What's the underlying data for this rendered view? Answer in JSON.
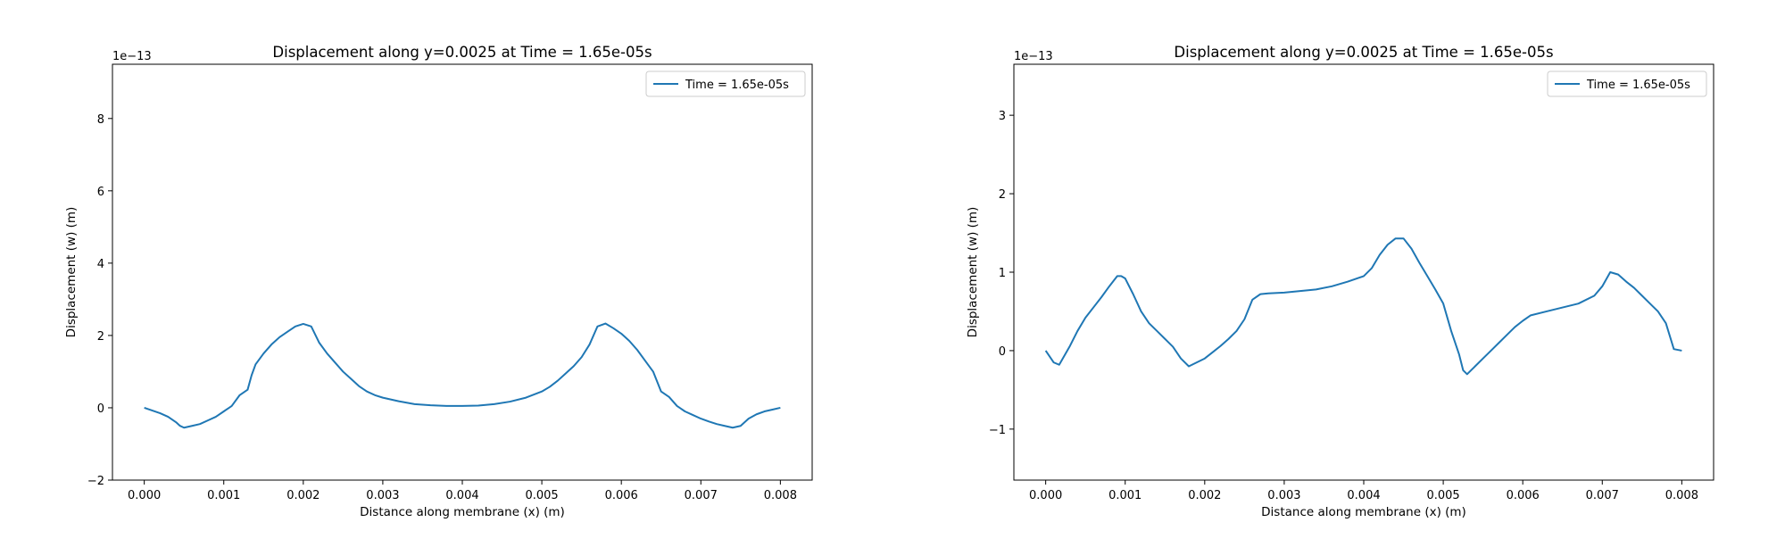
{
  "chart_data": [
    {
      "type": "line",
      "title": "Displacement along y=0.0025 at Time = 1.65e-05s",
      "xlabel": "Distance along membrane (x) (m)",
      "ylabel": "Displacement (w) (m)",
      "offset_text": "1e−13",
      "xlim": [
        -0.0004,
        0.0084
      ],
      "ylim": [
        -2.0,
        9.5
      ],
      "xticks": [
        0.0,
        0.001,
        0.002,
        0.003,
        0.004,
        0.005,
        0.006,
        0.007,
        0.008
      ],
      "xtick_labels": [
        "0.000",
        "0.001",
        "0.002",
        "0.003",
        "0.004",
        "0.005",
        "0.006",
        "0.007",
        "0.008"
      ],
      "yticks": [
        -2,
        0,
        2,
        4,
        6,
        8
      ],
      "ytick_labels": [
        "−2",
        "0",
        "2",
        "4",
        "6",
        "8"
      ],
      "grid": false,
      "legend_position": "upper-right",
      "series": [
        {
          "name": "Time = 1.65e-05s",
          "color": "#1f77b4",
          "x": [
            0.0,
            0.0002,
            0.0003,
            0.0004,
            0.00045,
            0.0005,
            0.0006,
            0.0007,
            0.0008,
            0.0009,
            0.001,
            0.0011,
            0.0012,
            0.0013,
            0.00135,
            0.0014,
            0.0015,
            0.0016,
            0.0017,
            0.0018,
            0.0019,
            0.002,
            0.0021,
            0.0022,
            0.0023,
            0.0024,
            0.0025,
            0.0026,
            0.0027,
            0.0028,
            0.0029,
            0.003,
            0.0032,
            0.0034,
            0.0036,
            0.0038,
            0.004,
            0.0042,
            0.0044,
            0.0046,
            0.0048,
            0.005,
            0.0051,
            0.0052,
            0.0053,
            0.0054,
            0.0055,
            0.0056,
            0.0057,
            0.0058,
            0.0059,
            0.006,
            0.0061,
            0.0062,
            0.0063,
            0.0064,
            0.0065,
            0.0066,
            0.0067,
            0.0068,
            0.0069,
            0.007,
            0.0071,
            0.0072,
            0.0073,
            0.0074,
            0.0075,
            0.0076,
            0.0077,
            0.0078,
            0.0079,
            0.008
          ],
          "y": [
            0.0,
            -0.15,
            -0.25,
            -0.4,
            -0.5,
            -0.55,
            -0.5,
            -0.45,
            -0.35,
            -0.25,
            -0.1,
            0.05,
            0.35,
            0.5,
            0.9,
            1.2,
            1.5,
            1.75,
            1.95,
            2.1,
            2.25,
            2.32,
            2.25,
            1.8,
            1.5,
            1.25,
            1.0,
            0.8,
            0.6,
            0.45,
            0.35,
            0.28,
            0.18,
            0.1,
            0.07,
            0.05,
            0.05,
            0.06,
            0.1,
            0.17,
            0.28,
            0.45,
            0.58,
            0.75,
            0.95,
            1.15,
            1.4,
            1.75,
            2.25,
            2.33,
            2.2,
            2.05,
            1.85,
            1.6,
            1.3,
            1.0,
            0.45,
            0.3,
            0.05,
            -0.1,
            -0.2,
            -0.3,
            -0.38,
            -0.45,
            -0.5,
            -0.55,
            -0.5,
            -0.3,
            -0.18,
            -0.1,
            -0.05,
            0.0
          ]
        }
      ]
    },
    {
      "type": "line",
      "title": "Displacement along y=0.0025 at Time = 1.65e-05s",
      "xlabel": "Distance along membrane (x) (m)",
      "ylabel": "Displacement (w) (m)",
      "offset_text": "1e−13",
      "xlim": [
        -0.0004,
        0.0084
      ],
      "ylim": [
        -1.65,
        3.65
      ],
      "xticks": [
        0.0,
        0.001,
        0.002,
        0.003,
        0.004,
        0.005,
        0.006,
        0.007,
        0.008
      ],
      "xtick_labels": [
        "0.000",
        "0.001",
        "0.002",
        "0.003",
        "0.004",
        "0.005",
        "0.006",
        "0.007",
        "0.008"
      ],
      "yticks": [
        -1,
        0,
        1,
        2,
        3
      ],
      "ytick_labels": [
        "−1",
        "0",
        "1",
        "2",
        "3"
      ],
      "grid": false,
      "legend_position": "upper-right",
      "series": [
        {
          "name": "Time = 1.65e-05s",
          "color": "#1f77b4",
          "x": [
            0.0,
            0.0001,
            0.00017,
            0.0003,
            0.0004,
            0.0005,
            0.0006,
            0.0007,
            0.0008,
            0.0009,
            0.00095,
            0.001,
            0.0011,
            0.0012,
            0.0013,
            0.0014,
            0.0015,
            0.0016,
            0.0017,
            0.0018,
            0.0019,
            0.002,
            0.0021,
            0.0022,
            0.0023,
            0.0024,
            0.0025,
            0.0026,
            0.0027,
            0.0028,
            0.003,
            0.0032,
            0.0034,
            0.0036,
            0.0038,
            0.004,
            0.0041,
            0.0042,
            0.0043,
            0.0044,
            0.0045,
            0.0046,
            0.0047,
            0.0048,
            0.0049,
            0.005,
            0.0051,
            0.0052,
            0.00525,
            0.0053,
            0.0054,
            0.0055,
            0.0056,
            0.0057,
            0.0058,
            0.0059,
            0.006,
            0.0061,
            0.0063,
            0.0065,
            0.0067,
            0.0069,
            0.007,
            0.0071,
            0.0072,
            0.0073,
            0.0074,
            0.0075,
            0.0076,
            0.0077,
            0.0078,
            0.0079,
            0.008
          ],
          "y": [
            0.0,
            -0.15,
            -0.18,
            0.05,
            0.25,
            0.42,
            0.55,
            0.68,
            0.82,
            0.95,
            0.95,
            0.92,
            0.72,
            0.5,
            0.35,
            0.25,
            0.15,
            0.05,
            -0.1,
            -0.2,
            -0.15,
            -0.1,
            -0.02,
            0.06,
            0.15,
            0.25,
            0.4,
            0.65,
            0.72,
            0.73,
            0.74,
            0.76,
            0.78,
            0.82,
            0.88,
            0.95,
            1.05,
            1.22,
            1.35,
            1.43,
            1.43,
            1.3,
            1.12,
            0.95,
            0.78,
            0.6,
            0.25,
            -0.05,
            -0.25,
            -0.3,
            -0.2,
            -0.1,
            0.0,
            0.1,
            0.2,
            0.3,
            0.38,
            0.45,
            0.5,
            0.55,
            0.6,
            0.7,
            0.82,
            1.0,
            0.97,
            0.88,
            0.8,
            0.7,
            0.6,
            0.5,
            0.35,
            0.02,
            0.0
          ]
        }
      ]
    }
  ]
}
